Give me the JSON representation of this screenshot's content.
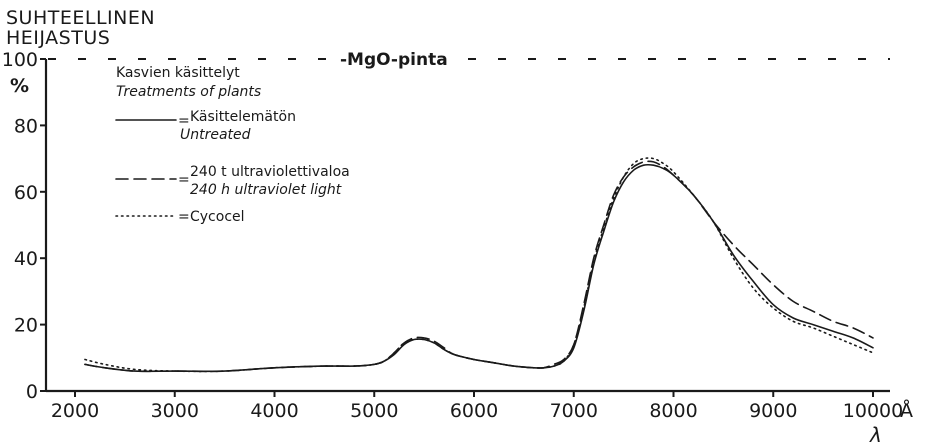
{
  "chart_data": {
    "type": "line",
    "title": [
      "SUHTEELLINEN",
      "HEIJASTUS"
    ],
    "yunit": "%",
    "xlabel": "λ",
    "xunit": "Å",
    "xlim": [
      1700,
      10300
    ],
    "ylim": [
      0,
      100
    ],
    "xticks": [
      2000,
      3000,
      4000,
      5000,
      6000,
      7000,
      8000,
      9000,
      10000
    ],
    "xtick_labels": [
      "2000",
      "3000",
      "4000",
      "5000",
      "6000",
      "7000",
      "8000",
      "9000",
      "10000"
    ],
    "yticks": [
      0,
      20,
      40,
      60,
      80,
      100
    ],
    "ytick_labels": [
      "0",
      "20",
      "40",
      "60",
      "80",
      "100"
    ],
    "reference": {
      "label": "-MgO-pinta",
      "y": 100
    },
    "legend": {
      "title": "Kasvien käsittelyt",
      "subtitle": "Treatments of plants",
      "placement": "top-left"
    },
    "series": [
      {
        "name": "Käsittelemätön",
        "name_en": "Untreated",
        "style": "solid",
        "x": [
          2100,
          2300,
          2600,
          3000,
          3500,
          4000,
          4500,
          4800,
          5000,
          5100,
          5200,
          5300,
          5400,
          5500,
          5600,
          5700,
          5800,
          6000,
          6200,
          6400,
          6600,
          6700,
          6800,
          6900,
          7000,
          7100,
          7200,
          7300,
          7400,
          7500,
          7600,
          7700,
          7800,
          7900,
          8000,
          8200,
          8400,
          8600,
          8800,
          9000,
          9200,
          9400,
          9600,
          9800,
          10000
        ],
        "y": [
          8,
          7,
          6,
          6,
          6,
          7,
          7.5,
          7.5,
          8,
          9,
          11,
          14,
          15.5,
          15.5,
          14.5,
          12.5,
          11,
          9.5,
          8.5,
          7.5,
          7,
          7,
          7.5,
          9,
          13,
          24,
          38,
          48,
          57,
          63,
          66.5,
          68,
          68,
          67,
          65,
          59,
          51,
          41,
          33,
          26,
          22,
          20,
          18,
          16,
          13
        ]
      },
      {
        "name": "240 t ultraviolettivaloa",
        "name_en": "240 h ultraviolet light",
        "style": "dashed",
        "x": [
          2100,
          2300,
          2600,
          3000,
          3500,
          4000,
          4500,
          4800,
          5000,
          5100,
          5200,
          5300,
          5400,
          5500,
          5600,
          5700,
          5800,
          6000,
          6200,
          6400,
          6600,
          6700,
          6800,
          6900,
          7000,
          7100,
          7200,
          7300,
          7400,
          7500,
          7600,
          7700,
          7800,
          7900,
          8000,
          8200,
          8400,
          8600,
          8800,
          9000,
          9200,
          9400,
          9600,
          9800,
          10000
        ],
        "y": [
          8,
          7,
          6,
          6,
          6,
          7,
          7.5,
          7.5,
          8,
          9,
          11.5,
          14.5,
          16,
          16,
          15,
          13,
          11,
          9.5,
          8.5,
          7.5,
          7,
          7,
          8,
          9.5,
          14,
          26,
          40,
          50,
          59,
          64.5,
          67.5,
          69,
          69,
          67.5,
          65,
          59,
          51,
          44,
          38,
          32,
          27,
          24,
          21,
          19,
          16
        ]
      },
      {
        "name": "Cycocel",
        "style": "dotted",
        "x": [
          2100,
          2300,
          2600,
          3000,
          3500,
          4000,
          4500,
          4800,
          5000,
          5100,
          5200,
          5300,
          5400,
          5500,
          5600,
          5700,
          5800,
          6000,
          6200,
          6400,
          6600,
          6700,
          6800,
          6900,
          7000,
          7100,
          7200,
          7300,
          7400,
          7500,
          7600,
          7700,
          7800,
          7900,
          8000,
          8200,
          8400,
          8600,
          8800,
          9000,
          9200,
          9400,
          9600,
          9800,
          10000
        ],
        "y": [
          9.5,
          8,
          6.5,
          6,
          6,
          7,
          7.5,
          7.5,
          8,
          9,
          11.5,
          14.5,
          15.5,
          15.5,
          14.5,
          12.5,
          11,
          9.5,
          8.5,
          7.5,
          7,
          7,
          7.5,
          9,
          14,
          25,
          39,
          49,
          58,
          64.5,
          68.5,
          70,
          70,
          68.5,
          66,
          59,
          51,
          40,
          31,
          25,
          21,
          19,
          16.5,
          14,
          11.5
        ]
      }
    ]
  }
}
